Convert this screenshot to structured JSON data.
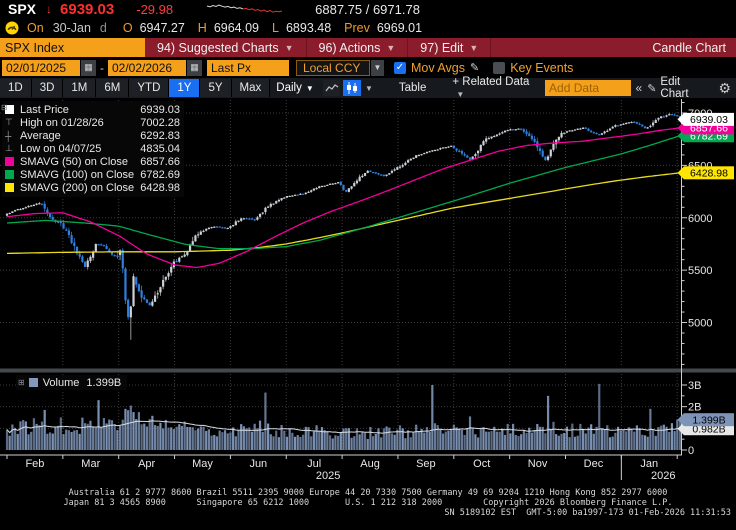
{
  "header": {
    "ticker": "SPX",
    "direction_arrow": "↓",
    "last_price": "6939.03",
    "net_change": "-29.98",
    "day_range": "6887.75 / 6971.78",
    "session_label": "On",
    "session_date": "30-Jan",
    "session_flag": "d",
    "open_label": "O",
    "open": "6947.27",
    "high_label": "H",
    "high": "6964.09",
    "low_label": "L",
    "low": "6893.48",
    "prev_label": "Prev",
    "prev": "6969.01"
  },
  "menu": {
    "security": "SPX Index",
    "items": [
      {
        "label": "94) Suggested Charts",
        "dropdown": true
      },
      {
        "label": "96) Actions",
        "dropdown": true
      },
      {
        "label": "97) Edit",
        "dropdown": true
      }
    ],
    "title": "Candle Chart"
  },
  "controls": {
    "date_from": "02/01/2025",
    "date_to": "02/02/2026",
    "price_field": "Last Px",
    "currency": "Local CCY",
    "mov_avgs_label": "Mov Avgs",
    "mov_avgs_checked": true,
    "key_events_label": "Key Events",
    "key_events_checked": false
  },
  "toolbar": {
    "periods": [
      "1D",
      "3D",
      "1M",
      "6M",
      "YTD",
      "1Y",
      "5Y",
      "Max"
    ],
    "active_period": "1Y",
    "frequency": "Daily",
    "table_label": "Table",
    "related_data_label": "+ Related Data",
    "add_data_placeholder": "Add Data",
    "collapse_label": "«",
    "edit_chart_label": "Edit Chart"
  },
  "colors": {
    "accent_orange": "#f5a01a",
    "menu_red": "#8a1c2c",
    "bloomberg_blue": "#1a6ff0",
    "price_red": "#ff2f2f",
    "candle_up": "#cdd2d8",
    "candle_down": "#2f7fdf",
    "smavg50": "#f2009b",
    "smavg100": "#00a84f",
    "smavg200": "#e8dc20",
    "volume_bar": "#8299bd"
  },
  "chart_data": {
    "type": "candlestick",
    "title": "SPX Index — 1Y Daily Candle Chart",
    "last_price": 6939.03,
    "high": {
      "date": "01/28/26",
      "value": 7002.28
    },
    "average": 6292.83,
    "low": {
      "date": "04/07/25",
      "value": 4835.04
    },
    "smavg50_last": 6857.66,
    "smavg100_last": 6782.69,
    "smavg200_last": 6428.98,
    "legend": {
      "rows": [
        {
          "marker": "swatch",
          "color": "#ffffff",
          "label": "Last Price",
          "value": "6939.03"
        },
        {
          "marker": "high",
          "label": "High on 01/28/26",
          "value": "7002.28"
        },
        {
          "marker": "avg",
          "label": "Average",
          "value": "6292.83"
        },
        {
          "marker": "low",
          "label": "Low on 04/07/25",
          "value": "4835.04"
        },
        {
          "marker": "swatch",
          "color": "#f2009b",
          "label": "SMAVG (50) on Close",
          "value": "6857.66"
        },
        {
          "marker": "swatch",
          "color": "#00a84f",
          "label": "SMAVG (100) on Close",
          "value": "6782.69"
        },
        {
          "marker": "swatch",
          "color": "#ffe600",
          "label": "SMAVG (200) on Close",
          "value": "6428.98"
        }
      ]
    },
    "price_axis": {
      "ticks": [
        5000,
        5500,
        6000,
        6500,
        7000
      ],
      "minor_step": 100,
      "grid": "dotted"
    },
    "axis_tags": [
      {
        "value": 6782.69,
        "text": "6782.69",
        "bg": "#00a84f",
        "fg": "#ffffff"
      },
      {
        "value": 6857.66,
        "text": "6857.66",
        "bg": "#f2009b",
        "fg": "#ffffff"
      },
      {
        "value": 6939.03,
        "text": "6939.03",
        "bg": "#ffffff",
        "fg": "#000000"
      },
      {
        "value": 6428.98,
        "text": "6428.98",
        "bg": "#ffe600",
        "fg": "#000000"
      }
    ],
    "x_axis": {
      "months": [
        "Feb",
        "Mar",
        "Apr",
        "May",
        "Jun",
        "Jul",
        "Aug",
        "Sep",
        "Oct",
        "Nov",
        "Dec",
        "Jan"
      ],
      "years": [
        {
          "text": "2025",
          "month_index": 5
        },
        {
          "text": "2026",
          "month_index": 11
        }
      ]
    },
    "price_keypoints": [
      {
        "m": 0.0,
        "c": 6040
      },
      {
        "m": 0.25,
        "c": 6090
      },
      {
        "m": 0.6,
        "c": 6145,
        "hi": 6150
      },
      {
        "m": 0.8,
        "c": 5985
      },
      {
        "m": 0.95,
        "c": 5950
      },
      {
        "m": 1.15,
        "c": 5780
      },
      {
        "m": 1.4,
        "c": 5525
      },
      {
        "m": 1.6,
        "c": 5760
      },
      {
        "m": 1.77,
        "c": 5710
      },
      {
        "m": 1.97,
        "c": 5610
      },
      {
        "m": 2.03,
        "c": 5670
      },
      {
        "m": 2.1,
        "c": 5400
      },
      {
        "m": 2.14,
        "c": 5075
      },
      {
        "m": 2.2,
        "c": 5060,
        "lo": 4835
      },
      {
        "m": 2.27,
        "c": 5455
      },
      {
        "m": 2.37,
        "c": 5280
      },
      {
        "m": 2.55,
        "c": 5160
      },
      {
        "m": 2.7,
        "c": 5290
      },
      {
        "m": 2.97,
        "c": 5570
      },
      {
        "m": 3.2,
        "c": 5650
      },
      {
        "m": 3.4,
        "c": 5845
      },
      {
        "m": 3.7,
        "c": 5920
      },
      {
        "m": 3.97,
        "c": 5900
      },
      {
        "m": 4.2,
        "c": 6000
      },
      {
        "m": 4.45,
        "c": 5980
      },
      {
        "m": 4.65,
        "c": 6100
      },
      {
        "m": 4.97,
        "c": 6200
      },
      {
        "m": 5.3,
        "c": 6230
      },
      {
        "m": 5.6,
        "c": 6300
      },
      {
        "m": 5.95,
        "c": 6340
      },
      {
        "m": 6.05,
        "c": 6240
      },
      {
        "m": 6.45,
        "c": 6450
      },
      {
        "m": 6.75,
        "c": 6400
      },
      {
        "m": 6.95,
        "c": 6460
      },
      {
        "m": 7.3,
        "c": 6590
      },
      {
        "m": 7.6,
        "c": 6640
      },
      {
        "m": 7.95,
        "c": 6690
      },
      {
        "m": 8.3,
        "c": 6550
      },
      {
        "m": 8.55,
        "c": 6740
      },
      {
        "m": 8.95,
        "c": 6840
      },
      {
        "m": 9.2,
        "c": 6850
      },
      {
        "m": 9.45,
        "c": 6720
      },
      {
        "m": 9.65,
        "c": 6540
      },
      {
        "m": 9.9,
        "c": 6810
      },
      {
        "m": 10.3,
        "c": 6860
      },
      {
        "m": 10.6,
        "c": 6790
      },
      {
        "m": 10.9,
        "c": 6880
      },
      {
        "m": 11.2,
        "c": 6920
      },
      {
        "m": 11.45,
        "c": 6850
      },
      {
        "m": 11.7,
        "c": 6960
      },
      {
        "m": 11.87,
        "c": 6990,
        "hi": 7002.28
      },
      {
        "m": 12.0,
        "c": 6969
      },
      {
        "m": 12.05,
        "c": 6939.03
      }
    ],
    "smavg50_keypoints": [
      [
        0,
        6010
      ],
      [
        0.5,
        6040
      ],
      [
        1,
        6048
      ],
      [
        1.5,
        5960
      ],
      [
        2,
        5830
      ],
      [
        2.5,
        5655
      ],
      [
        3,
        5550
      ],
      [
        3.4,
        5525
      ],
      [
        3.8,
        5565
      ],
      [
        4.3,
        5680
      ],
      [
        4.8,
        5820
      ],
      [
        5.3,
        5950
      ],
      [
        5.8,
        6060
      ],
      [
        6.3,
        6155
      ],
      [
        6.8,
        6255
      ],
      [
        7.3,
        6360
      ],
      [
        7.8,
        6465
      ],
      [
        8.3,
        6550
      ],
      [
        8.8,
        6635
      ],
      [
        9.3,
        6690
      ],
      [
        9.8,
        6715
      ],
      [
        10.3,
        6730
      ],
      [
        10.8,
        6765
      ],
      [
        11.3,
        6800
      ],
      [
        11.7,
        6835
      ],
      [
        12.05,
        6857.66
      ]
    ],
    "smavg100_keypoints": [
      [
        0,
        5950
      ],
      [
        0.7,
        5975
      ],
      [
        1.4,
        5950
      ],
      [
        2,
        5920
      ],
      [
        2.6,
        5830
      ],
      [
        3.2,
        5745
      ],
      [
        3.8,
        5705
      ],
      [
        4.4,
        5705
      ],
      [
        5,
        5725
      ],
      [
        5.6,
        5785
      ],
      [
        6,
        5845
      ],
      [
        6.5,
        5920
      ],
      [
        7,
        6000
      ],
      [
        7.5,
        6080
      ],
      [
        8,
        6160
      ],
      [
        8.5,
        6245
      ],
      [
        9,
        6330
      ],
      [
        9.5,
        6405
      ],
      [
        10,
        6480
      ],
      [
        10.5,
        6545
      ],
      [
        11,
        6610
      ],
      [
        11.5,
        6690
      ],
      [
        12.05,
        6782.69
      ]
    ],
    "smavg200_keypoints": [
      [
        0,
        5660
      ],
      [
        1,
        5670
      ],
      [
        2,
        5675
      ],
      [
        3,
        5675
      ],
      [
        4,
        5690
      ],
      [
        4.5,
        5715
      ],
      [
        5,
        5750
      ],
      [
        5.5,
        5800
      ],
      [
        6,
        5855
      ],
      [
        6.5,
        5915
      ],
      [
        7,
        5975
      ],
      [
        7.5,
        6035
      ],
      [
        8,
        6095
      ],
      [
        8.5,
        6140
      ],
      [
        9,
        6185
      ],
      [
        9.5,
        6230
      ],
      [
        10,
        6275
      ],
      [
        10.5,
        6320
      ],
      [
        11,
        6360
      ],
      [
        11.5,
        6395
      ],
      [
        12.05,
        6428.98
      ]
    ],
    "volume": {
      "legend_label": "Volume",
      "last": "1.399B",
      "last_value": 1.399,
      "ma_last": "0.982B",
      "ma_last_value": 0.982,
      "axis_ticks": [
        {
          "text": "0",
          "value": 0
        },
        {
          "text": "2B",
          "value": 2
        },
        {
          "text": "3B",
          "value": 3
        }
      ],
      "base_keypoints": [
        [
          0,
          1.0
        ],
        [
          0.6,
          1.15
        ],
        [
          1,
          1.1
        ],
        [
          1.5,
          1.25
        ],
        [
          2,
          1.3
        ],
        [
          2.3,
          1.45
        ],
        [
          2.6,
          1.25
        ],
        [
          3,
          1.1
        ],
        [
          3.5,
          1.0
        ],
        [
          4,
          0.95
        ],
        [
          4.7,
          1.0
        ],
        [
          5,
          0.9
        ],
        [
          5.5,
          0.85
        ],
        [
          6,
          0.85
        ],
        [
          6.5,
          0.8
        ],
        [
          7,
          0.85
        ],
        [
          7.6,
          0.9
        ],
        [
          8,
          0.9
        ],
        [
          8.5,
          0.85
        ],
        [
          9,
          0.9
        ],
        [
          9.7,
          1.0
        ],
        [
          10,
          0.95
        ],
        [
          10.6,
          0.85
        ],
        [
          11,
          0.8
        ],
        [
          11.5,
          0.9
        ],
        [
          12.05,
          1.1
        ]
      ],
      "spikes": [
        [
          0.67,
          1.85
        ],
        [
          1.63,
          2.3
        ],
        [
          2.13,
          1.9
        ],
        [
          2.2,
          2.05
        ],
        [
          2.27,
          1.75
        ],
        [
          4.63,
          2.65
        ],
        [
          7.6,
          3.0
        ],
        [
          8.3,
          1.55
        ],
        [
          9.67,
          2.5
        ],
        [
          10.6,
          3.05
        ],
        [
          11.5,
          1.9
        ],
        [
          12.05,
          1.399
        ]
      ]
    },
    "sparkline": {
      "values": [
        0.82,
        0.74,
        0.86,
        0.78,
        0.9,
        0.8,
        0.72,
        0.78,
        0.66,
        0.72,
        0.6,
        0.66,
        0.55,
        0.6,
        0.48,
        0.56,
        0.42,
        0.5,
        0.36,
        0.45,
        0.3,
        0.4,
        0.26,
        0.34,
        0.3,
        0.36
      ],
      "split_index": 12
    }
  },
  "footer": {
    "line1": "Australia 61 2 9777 8600 Brazil 5511 2395 9000 Europe 44 20 7330 7500 Germany 49 69 9204 1210 Hong Kong 852 2977 6000",
    "line2": "Japan 81 3 4565 8900      Singapore 65 6212 1000       U.S. 1 212 318 2000        Copyright 2026 Bloomberg Finance L.P.",
    "line3": "SN 5189102 EST  GMT-5:00 ba1997-173 01-Feb-2026 11:31:53"
  }
}
